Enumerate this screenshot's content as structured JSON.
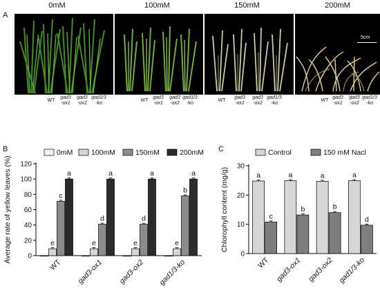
{
  "panel_a": {
    "letter": "A",
    "concentrations": [
      "0mM",
      "100mM",
      "150mM",
      "200mM"
    ],
    "scale_bar": "5cm",
    "genotypes": [
      {
        "line1": "WT",
        "line2": ""
      },
      {
        "line1": "gad3",
        "line2": "-ox1"
      },
      {
        "line1": "gad3",
        "line2": "-ox2"
      },
      {
        "line1": "gad1/3",
        "line2": "-ko"
      }
    ]
  },
  "panel_b": {
    "letter": "B"
  },
  "panel_c": {
    "letter": "C"
  },
  "chart_data": [
    {
      "type": "bar",
      "categories": [
        "WT",
        "gad3-ox1",
        "gad3-ox2",
        "gad1/3-ko"
      ],
      "ylabel": "Average rate of yellow leaves (%)",
      "xlabel": "",
      "ylim": [
        0,
        120
      ],
      "yticks": [
        0,
        20,
        40,
        60,
        80,
        100,
        120
      ],
      "legend_position": "top",
      "series": [
        {
          "name": "0mM",
          "color": "#f2f2f2",
          "values": [
            0,
            0,
            0,
            0
          ],
          "letters": [
            "",
            "",
            "",
            ""
          ]
        },
        {
          "name": "100mM",
          "color": "#d6d6d6",
          "values": [
            9,
            9,
            9,
            9
          ],
          "letters": [
            "e",
            "e",
            "e",
            "e"
          ]
        },
        {
          "name": "150mM",
          "color": "#8c8c8c",
          "values": [
            71,
            41,
            41,
            78
          ],
          "letters": [
            "c",
            "d",
            "d",
            "b"
          ]
        },
        {
          "name": "200mM",
          "color": "#2b2b2b",
          "values": [
            100,
            100,
            100,
            100
          ],
          "letters": [
            "a",
            "a",
            "a",
            "a"
          ]
        }
      ]
    },
    {
      "type": "bar",
      "categories": [
        "WT",
        "gad3-ox1",
        "gad3-ox2",
        "gad1/3-ko"
      ],
      "ylabel": "Chlorophyll content (mg/g)",
      "xlabel": "",
      "ylim": [
        0,
        30
      ],
      "yticks": [
        0,
        10,
        20,
        30
      ],
      "legend_position": "top",
      "series": [
        {
          "name": "Control",
          "color": "#d6d6d6",
          "values": [
            24.8,
            24.9,
            24.7,
            24.9
          ],
          "letters": [
            "a",
            "a",
            "a",
            "a"
          ]
        },
        {
          "name": "150 mM Nacl",
          "color": "#7f7f7f",
          "values": [
            10.8,
            13.2,
            14.0,
            9.7
          ],
          "letters": [
            "c",
            "b",
            "b",
            "d"
          ]
        }
      ]
    }
  ]
}
